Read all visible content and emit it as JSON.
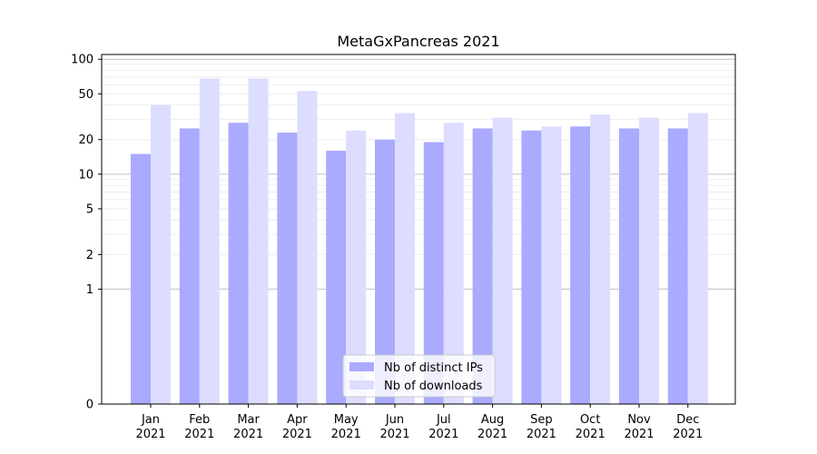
{
  "chart_data": {
    "type": "bar",
    "title": "MetaGxPancreas 2021",
    "xlabel": "",
    "ylabel": "",
    "yscale": "symlog",
    "ylim": [
      0,
      110
    ],
    "yticks": [
      0,
      1,
      2,
      5,
      10,
      20,
      50,
      100
    ],
    "grid": "horizontal",
    "legend_position": "bottom-center",
    "categories": [
      {
        "month": "Jan",
        "year": "2021"
      },
      {
        "month": "Feb",
        "year": "2021"
      },
      {
        "month": "Mar",
        "year": "2021"
      },
      {
        "month": "Apr",
        "year": "2021"
      },
      {
        "month": "May",
        "year": "2021"
      },
      {
        "month": "Jun",
        "year": "2021"
      },
      {
        "month": "Jul",
        "year": "2021"
      },
      {
        "month": "Aug",
        "year": "2021"
      },
      {
        "month": "Sep",
        "year": "2021"
      },
      {
        "month": "Oct",
        "year": "2021"
      },
      {
        "month": "Nov",
        "year": "2021"
      },
      {
        "month": "Dec",
        "year": "2021"
      }
    ],
    "series": [
      {
        "name": "Nb of distinct IPs",
        "color": "#aaaaff",
        "values": [
          15,
          25,
          28,
          23,
          16,
          20,
          19,
          25,
          24,
          26,
          25,
          25
        ]
      },
      {
        "name": "Nb of downloads",
        "color": "#ddddff",
        "values": [
          40,
          68,
          68,
          53,
          24,
          34,
          28,
          31,
          26,
          33,
          31,
          34
        ]
      }
    ]
  }
}
